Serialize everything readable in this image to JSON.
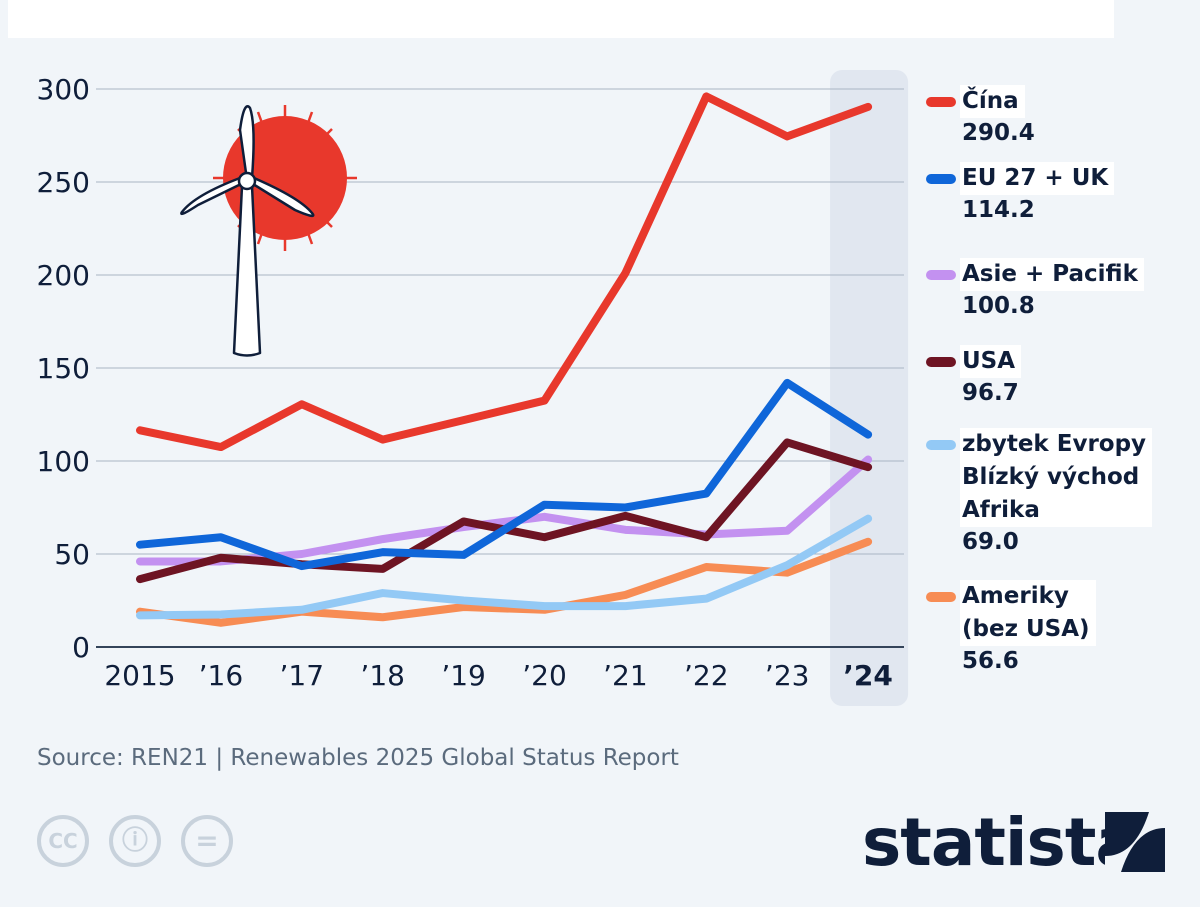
{
  "chart_data": {
    "type": "line",
    "title": "",
    "xlabel": "",
    "ylabel": "",
    "categories": [
      "2015",
      "’16",
      "’17",
      "’18",
      "’19",
      "’20",
      "’21",
      "’22",
      "’23",
      "’24"
    ],
    "yticks": [
      "0",
      "50",
      "100",
      "150",
      "200",
      "250",
      "300"
    ],
    "ylim": [
      0,
      300
    ],
    "grid": true,
    "highlight_category": "’24",
    "series": [
      {
        "name": "Čína",
        "color": "#e8382c",
        "end_label": "290.4",
        "values": [
          116.5,
          107.5,
          130.5,
          111.5,
          122,
          132.5,
          201,
          296,
          274.5,
          290.4
        ]
      },
      {
        "name": "EU 27 + UK",
        "color": "#0f66d9",
        "end_label": "114.2",
        "values": [
          55,
          59,
          43.5,
          51,
          49.5,
          76.5,
          75,
          82.5,
          142,
          114.2
        ]
      },
      {
        "name": "Asie + Pacifik",
        "color": "#c391f0",
        "end_label": "100.8",
        "values": [
          46,
          46,
          50,
          58,
          64.5,
          70,
          63,
          60.5,
          62.5,
          100.8
        ]
      },
      {
        "name": "USA",
        "color": "#6e1423",
        "end_label": "96.7",
        "values": [
          36.5,
          48,
          44.5,
          42,
          67.5,
          59,
          70.5,
          59,
          110,
          96.7
        ]
      },
      {
        "name": "zbytek Evropy\nBlízký východ\nAfrika",
        "color": "#93c9f5",
        "end_label": "69.0",
        "values": [
          17,
          17.5,
          20,
          29,
          25,
          22,
          22,
          26,
          44,
          69.0
        ]
      },
      {
        "name": "Ameriky\n(bez USA)",
        "color": "#f78c54",
        "end_label": "56.6",
        "values": [
          19,
          13,
          19,
          16,
          21.5,
          20,
          28,
          43,
          40,
          56.6
        ]
      }
    ]
  },
  "source": "Source: REN21 | Renewables 2025 Global Status Report",
  "brand": "statista",
  "license_icons": [
    "cc",
    "attribution",
    "no-derivatives"
  ],
  "license_icon_text": {
    "cc": "CC",
    "attribution": "ⓘ",
    "no_derivatives": "="
  }
}
